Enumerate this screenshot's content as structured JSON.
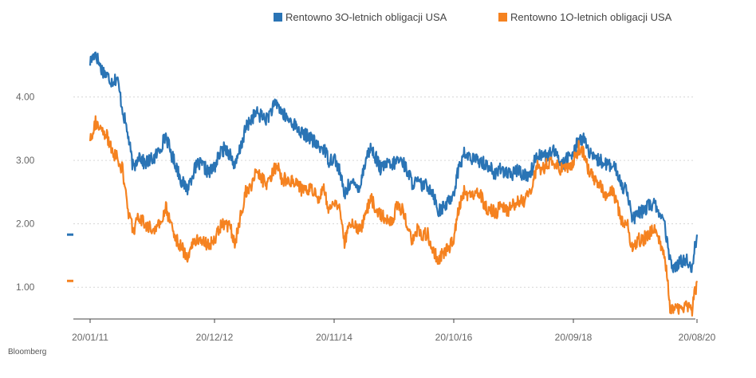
{
  "source": "Bloomberg",
  "chart_data": {
    "type": "line",
    "title": "",
    "xlabel": "",
    "ylabel": "",
    "x_ticks": [
      "20/01/11",
      "20/12/12",
      "20/11/14",
      "20/10/16",
      "20/09/18",
      "20/08/20"
    ],
    "x_range": [
      "20/01/11",
      "20/08/20"
    ],
    "y_ticks": [
      "1.00",
      "2.00",
      "3.00",
      "4.00"
    ],
    "ylim": [
      0.5,
      4.9
    ],
    "grid": "horizontal-dotted",
    "legend_position": "top-right",
    "series": [
      {
        "name": "Rentowno 3O-letnich obligacji USA",
        "color": "#2a74b5",
        "last_value": 1.83,
        "values": [
          [
            "20/01/11",
            4.55
          ],
          [
            "20/02/11",
            4.7
          ],
          [
            "20/03/11",
            4.45
          ],
          [
            "20/04/11",
            4.35
          ],
          [
            "20/05/11",
            4.25
          ],
          [
            "20/06/11",
            4.3
          ],
          [
            "20/07/11",
            3.8
          ],
          [
            "20/08/11",
            3.4
          ],
          [
            "20/09/11",
            2.85
          ],
          [
            "20/10/11",
            3.1
          ],
          [
            "20/11/11",
            2.95
          ],
          [
            "20/12/11",
            3.0
          ],
          [
            "20/01/12",
            3.05
          ],
          [
            "20/02/12",
            3.2
          ],
          [
            "20/03/12",
            3.4
          ],
          [
            "20/04/12",
            3.1
          ],
          [
            "20/05/12",
            2.9
          ],
          [
            "20/06/12",
            2.65
          ],
          [
            "20/07/12",
            2.55
          ],
          [
            "20/08/12",
            2.8
          ],
          [
            "20/09/12",
            2.95
          ],
          [
            "20/10/12",
            2.9
          ],
          [
            "20/11/12",
            2.8
          ],
          [
            "20/12/12",
            2.9
          ],
          [
            "20/01/13",
            3.1
          ],
          [
            "20/02/13",
            3.2
          ],
          [
            "20/03/13",
            3.1
          ],
          [
            "20/04/13",
            2.9
          ],
          [
            "20/05/13",
            3.2
          ],
          [
            "20/06/13",
            3.5
          ],
          [
            "20/07/13",
            3.65
          ],
          [
            "20/08/13",
            3.75
          ],
          [
            "20/09/13",
            3.7
          ],
          [
            "20/10/13",
            3.65
          ],
          [
            "20/11/13",
            3.8
          ],
          [
            "20/12/13",
            3.9
          ],
          [
            "20/01/14",
            3.75
          ],
          [
            "20/02/14",
            3.65
          ],
          [
            "20/03/14",
            3.6
          ],
          [
            "20/04/14",
            3.5
          ],
          [
            "20/05/14",
            3.4
          ],
          [
            "20/06/14",
            3.4
          ],
          [
            "20/07/14",
            3.3
          ],
          [
            "20/08/14",
            3.2
          ],
          [
            "20/09/14",
            3.2
          ],
          [
            "20/10/14",
            3.0
          ],
          [
            "20/11/14",
            3.05
          ],
          [
            "20/12/14",
            2.85
          ],
          [
            "20/01/15",
            2.45
          ],
          [
            "20/02/15",
            2.65
          ],
          [
            "20/03/15",
            2.6
          ],
          [
            "20/04/15",
            2.6
          ],
          [
            "20/05/15",
            3.0
          ],
          [
            "20/06/15",
            3.2
          ],
          [
            "20/07/15",
            3.05
          ],
          [
            "20/08/15",
            2.85
          ],
          [
            "20/09/15",
            2.95
          ],
          [
            "20/10/15",
            2.9
          ],
          [
            "20/11/15",
            3.0
          ],
          [
            "20/12/15",
            3.0
          ],
          [
            "20/01/16",
            2.85
          ],
          [
            "20/02/16",
            2.65
          ],
          [
            "20/03/16",
            2.65
          ],
          [
            "20/04/16",
            2.6
          ],
          [
            "20/05/16",
            2.6
          ],
          [
            "20/06/16",
            2.5
          ],
          [
            "20/07/16",
            2.2
          ],
          [
            "20/08/16",
            2.25
          ],
          [
            "20/09/16",
            2.35
          ],
          [
            "20/10/16",
            2.5
          ],
          [
            "20/11/16",
            2.9
          ],
          [
            "20/12/16",
            3.1
          ],
          [
            "20/01/17",
            3.05
          ],
          [
            "20/02/17",
            3.0
          ],
          [
            "20/03/17",
            3.0
          ],
          [
            "20/04/17",
            2.95
          ],
          [
            "20/05/17",
            2.9
          ],
          [
            "20/06/17",
            2.75
          ],
          [
            "20/07/17",
            2.9
          ],
          [
            "20/08/17",
            2.8
          ],
          [
            "20/09/17",
            2.75
          ],
          [
            "20/10/17",
            2.85
          ],
          [
            "20/11/17",
            2.8
          ],
          [
            "20/12/17",
            2.75
          ],
          [
            "20/01/18",
            2.85
          ],
          [
            "20/02/18",
            3.1
          ],
          [
            "20/03/18",
            3.1
          ],
          [
            "20/04/18",
            3.05
          ],
          [
            "20/05/18",
            3.15
          ],
          [
            "20/06/18",
            3.05
          ],
          [
            "20/07/18",
            2.95
          ],
          [
            "20/08/18",
            3.05
          ],
          [
            "20/09/18",
            3.1
          ],
          [
            "20/10/18",
            3.35
          ],
          [
            "20/11/18",
            3.35
          ],
          [
            "20/12/18",
            3.1
          ],
          [
            "20/01/19",
            3.0
          ],
          [
            "20/02/19",
            3.0
          ],
          [
            "20/03/19",
            2.95
          ],
          [
            "20/04/19",
            2.9
          ],
          [
            "20/05/19",
            2.85
          ],
          [
            "20/06/19",
            2.6
          ],
          [
            "20/07/19",
            2.55
          ],
          [
            "20/08/19",
            2.05
          ],
          [
            "20/09/19",
            2.15
          ],
          [
            "20/10/19",
            2.2
          ],
          [
            "20/11/19",
            2.3
          ],
          [
            "20/12/19",
            2.3
          ],
          [
            "20/01/20",
            2.2
          ],
          [
            "20/02/20",
            1.95
          ],
          [
            "20/03/20",
            1.4
          ],
          [
            "20/04/20",
            1.3
          ],
          [
            "20/05/20",
            1.4
          ],
          [
            "20/06/20",
            1.45
          ],
          [
            "20/07/20",
            1.3
          ],
          [
            "20/08/20",
            1.83
          ]
        ]
      },
      {
        "name": "Rentowno 1O-letnich obligacji USA",
        "color": "#f58220",
        "last_value": 1.1,
        "values": [
          [
            "20/01/11",
            3.35
          ],
          [
            "20/02/11",
            3.6
          ],
          [
            "20/03/11",
            3.45
          ],
          [
            "20/04/11",
            3.4
          ],
          [
            "20/05/11",
            3.15
          ],
          [
            "20/06/11",
            3.05
          ],
          [
            "20/07/11",
            2.85
          ],
          [
            "20/08/11",
            2.2
          ],
          [
            "20/09/11",
            1.9
          ],
          [
            "20/10/11",
            2.1
          ],
          [
            "20/11/11",
            2.0
          ],
          [
            "20/12/11",
            1.95
          ],
          [
            "20/01/12",
            1.9
          ],
          [
            "20/02/12",
            2.0
          ],
          [
            "20/03/12",
            2.25
          ],
          [
            "20/04/12",
            2.0
          ],
          [
            "20/05/12",
            1.75
          ],
          [
            "20/06/12",
            1.6
          ],
          [
            "20/07/12",
            1.5
          ],
          [
            "20/08/12",
            1.7
          ],
          [
            "20/09/12",
            1.75
          ],
          [
            "20/10/12",
            1.75
          ],
          [
            "20/11/12",
            1.65
          ],
          [
            "20/12/12",
            1.75
          ],
          [
            "20/01/13",
            1.95
          ],
          [
            "20/02/13",
            2.0
          ],
          [
            "20/03/13",
            1.95
          ],
          [
            "20/04/13",
            1.7
          ],
          [
            "20/05/13",
            2.1
          ],
          [
            "20/06/13",
            2.5
          ],
          [
            "20/07/13",
            2.6
          ],
          [
            "20/08/13",
            2.8
          ],
          [
            "20/09/13",
            2.75
          ],
          [
            "20/10/13",
            2.55
          ],
          [
            "20/11/13",
            2.75
          ],
          [
            "20/12/13",
            2.95
          ],
          [
            "20/01/14",
            2.7
          ],
          [
            "20/02/14",
            2.7
          ],
          [
            "20/03/14",
            2.7
          ],
          [
            "20/04/14",
            2.65
          ],
          [
            "20/05/14",
            2.5
          ],
          [
            "20/06/14",
            2.55
          ],
          [
            "20/07/14",
            2.5
          ],
          [
            "20/08/14",
            2.4
          ],
          [
            "20/09/14",
            2.55
          ],
          [
            "20/10/14",
            2.25
          ],
          [
            "20/11/14",
            2.35
          ],
          [
            "20/12/14",
            2.2
          ],
          [
            "20/01/15",
            1.7
          ],
          [
            "20/02/15",
            2.05
          ],
          [
            "20/03/15",
            1.95
          ],
          [
            "20/04/15",
            1.9
          ],
          [
            "20/05/15",
            2.15
          ],
          [
            "20/06/15",
            2.4
          ],
          [
            "20/07/15",
            2.25
          ],
          [
            "20/08/15",
            2.15
          ],
          [
            "20/09/15",
            2.1
          ],
          [
            "20/10/15",
            2.05
          ],
          [
            "20/11/15",
            2.25
          ],
          [
            "20/12/15",
            2.25
          ],
          [
            "20/01/16",
            2.0
          ],
          [
            "20/02/16",
            1.75
          ],
          [
            "20/03/16",
            1.9
          ],
          [
            "20/04/16",
            1.8
          ],
          [
            "20/05/16",
            1.85
          ],
          [
            "20/06/16",
            1.55
          ],
          [
            "20/07/16",
            1.45
          ],
          [
            "20/08/16",
            1.55
          ],
          [
            "20/09/16",
            1.6
          ],
          [
            "20/10/16",
            1.75
          ],
          [
            "20/11/16",
            2.25
          ],
          [
            "20/12/16",
            2.5
          ],
          [
            "20/01/17",
            2.45
          ],
          [
            "20/02/17",
            2.4
          ],
          [
            "20/03/17",
            2.5
          ],
          [
            "20/04/17",
            2.25
          ],
          [
            "20/05/17",
            2.25
          ],
          [
            "20/06/17",
            2.15
          ],
          [
            "20/07/17",
            2.3
          ],
          [
            "20/08/17",
            2.2
          ],
          [
            "20/09/17",
            2.25
          ],
          [
            "20/10/17",
            2.35
          ],
          [
            "20/11/17",
            2.35
          ],
          [
            "20/12/17",
            2.4
          ],
          [
            "20/01/18",
            2.6
          ],
          [
            "20/02/18",
            2.9
          ],
          [
            "20/03/18",
            2.85
          ],
          [
            "20/04/18",
            2.95
          ],
          [
            "20/05/18",
            2.95
          ],
          [
            "20/06/18",
            2.9
          ],
          [
            "20/07/18",
            2.85
          ],
          [
            "20/08/18",
            2.85
          ],
          [
            "20/09/18",
            3.0
          ],
          [
            "20/10/18",
            3.2
          ],
          [
            "20/11/18",
            3.1
          ],
          [
            "20/12/18",
            2.8
          ],
          [
            "20/01/19",
            2.7
          ],
          [
            "20/02/19",
            2.65
          ],
          [
            "20/03/19",
            2.45
          ],
          [
            "20/04/19",
            2.55
          ],
          [
            "20/05/19",
            2.35
          ],
          [
            "20/06/19",
            2.05
          ],
          [
            "20/07/19",
            2.05
          ],
          [
            "20/08/19",
            1.55
          ],
          [
            "20/09/19",
            1.75
          ],
          [
            "20/10/19",
            1.75
          ],
          [
            "20/11/19",
            1.85
          ],
          [
            "20/12/19",
            1.9
          ],
          [
            "20/01/20",
            1.75
          ],
          [
            "20/02/20",
            1.5
          ],
          [
            "20/03/20",
            0.7
          ],
          [
            "20/04/20",
            0.65
          ],
          [
            "20/05/20",
            0.7
          ],
          [
            "20/06/20",
            0.7
          ],
          [
            "20/07/20",
            0.6
          ],
          [
            "20/08/20",
            1.1
          ]
        ]
      }
    ]
  }
}
